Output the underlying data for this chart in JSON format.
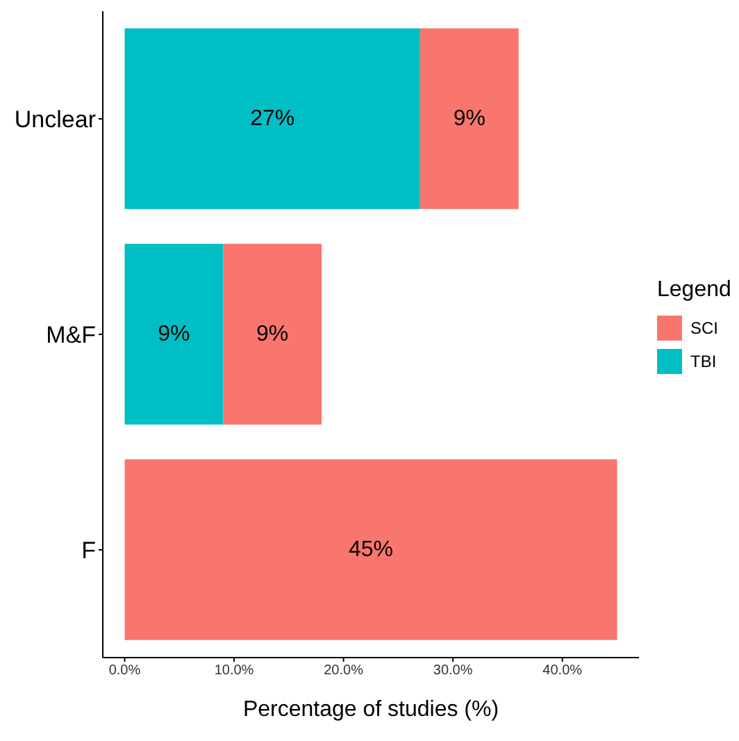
{
  "chart_data": {
    "type": "bar",
    "orientation": "horizontal",
    "stacked": true,
    "categories": [
      "Unclear",
      "M&F",
      "F"
    ],
    "series": [
      {
        "name": "TBI",
        "color": "#00bfc4",
        "values": [
          27,
          9,
          null
        ],
        "value_labels": [
          "27%",
          "9%",
          null
        ]
      },
      {
        "name": "SCI",
        "color": "#f8766d",
        "values": [
          9,
          9,
          45
        ],
        "value_labels": [
          "9%",
          "9%",
          "45%"
        ]
      }
    ],
    "xlabel": "Percentage of studies (%)",
    "legend_title": "Legend",
    "legend": "right",
    "grid": false,
    "xlim": [
      -2,
      47
    ],
    "xticks": [
      {
        "value": 0,
        "label": "0.0%"
      },
      {
        "value": 10,
        "label": "10.0%"
      },
      {
        "value": 20,
        "label": "20.0%"
      },
      {
        "value": 30,
        "label": "30.0%"
      },
      {
        "value": 40,
        "label": "40.0%"
      }
    ]
  }
}
